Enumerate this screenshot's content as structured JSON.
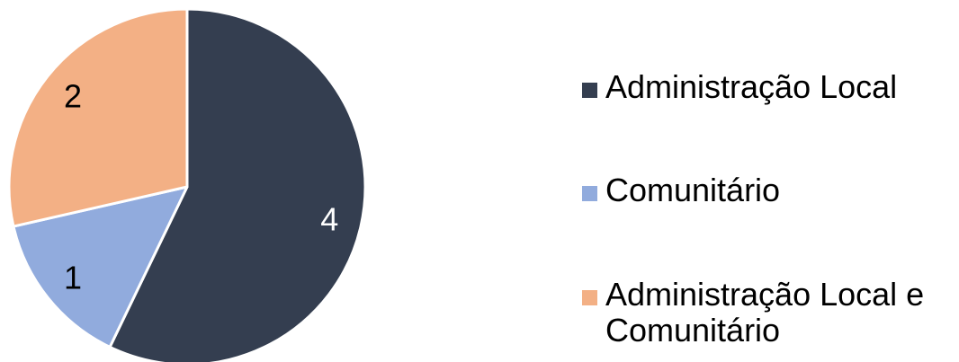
{
  "chart_data": {
    "type": "pie",
    "title": "",
    "categories": [
      "Administração Local",
      "Comunitário",
      "Administração Local e Comunitário"
    ],
    "values": [
      4,
      1,
      2
    ],
    "colors": [
      "#343e50",
      "#91abdd",
      "#f3b085"
    ],
    "data_labels": [
      "4",
      "1",
      "2"
    ],
    "start_angle_deg": 0,
    "direction": "clockwise",
    "legend_position": "right",
    "legend": [
      {
        "label": "Administração Local",
        "color": "#343e50"
      },
      {
        "label": "Comunitário",
        "color": "#91abdd"
      },
      {
        "label": "Administração Local e Comunitário",
        "color": "#f3b085"
      }
    ]
  }
}
